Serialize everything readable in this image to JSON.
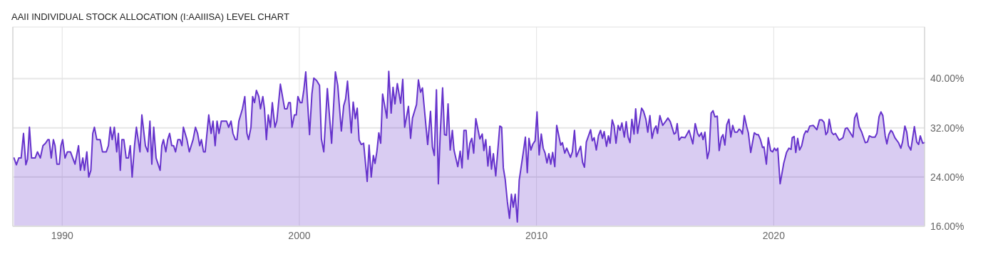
{
  "chart_data": {
    "type": "area",
    "title": "AAII INDIVIDUAL STOCK ALLOCATION (I:AAIIISA) LEVEL CHART",
    "xlim": [
      1987.92,
      2026.36
    ],
    "xticks": [
      1990,
      2000,
      2010,
      2020
    ],
    "ylim": [
      16,
      48.4
    ],
    "yticks": [
      {
        "value": 16,
        "label": "16.00%"
      },
      {
        "value": 24,
        "label": "24.00%"
      },
      {
        "value": 32,
        "label": "32.00%"
      },
      {
        "value": 40,
        "label": "40.00%"
      }
    ],
    "grid": true,
    "series": [
      {
        "color": "#6633cc",
        "x": [
          1987.97,
          1988.07,
          1988.17,
          1988.27,
          1988.37,
          1988.47,
          1988.54,
          1988.62,
          1988.71,
          1988.86,
          1988.96,
          1989.08,
          1989.19,
          1989.3,
          1989.4,
          1989.45,
          1989.54,
          1989.63,
          1989.7,
          1989.78,
          1989.88,
          1989.95,
          1990.02,
          1990.12,
          1990.22,
          1990.35,
          1990.54,
          1990.69,
          1990.77,
          1990.87,
          1990.94,
          1991.04,
          1991.12,
          1991.21,
          1991.29,
          1991.36,
          1991.46,
          1991.6,
          1991.7,
          1991.86,
          1991.95,
          1992.03,
          1992.11,
          1992.2,
          1992.3,
          1992.37,
          1992.45,
          1992.52,
          1992.6,
          1992.7,
          1992.79,
          1992.87,
          1992.95,
          1993.05,
          1993.13,
          1993.28,
          1993.36,
          1993.51,
          1993.61,
          1993.7,
          1993.78,
          1993.86,
          1993.96,
          1994.13,
          1994.2,
          1994.27,
          1994.37,
          1994.45,
          1994.53,
          1994.62,
          1994.7,
          1994.78,
          1994.88,
          1994.97,
          1995.05,
          1995.11,
          1995.26,
          1995.36,
          1995.52,
          1995.62,
          1995.71,
          1995.8,
          1995.87,
          1995.96,
          1996.03,
          1996.18,
          1996.28,
          1996.36,
          1996.45,
          1996.53,
          1996.61,
          1996.71,
          1996.93,
          1997.02,
          1997.12,
          1997.2,
          1997.3,
          1997.37,
          1997.45,
          1997.6,
          1997.7,
          1997.79,
          1997.86,
          1997.96,
          1998.03,
          1998.11,
          1998.19,
          1998.29,
          1998.36,
          1998.46,
          1998.53,
          1998.61,
          1998.69,
          1998.78,
          1998.86,
          1998.97,
          1999.05,
          1999.2,
          1999.38,
          1999.48,
          1999.55,
          1999.62,
          1999.69,
          1999.79,
          1999.87,
          1999.94,
          2000.04,
          2000.11,
          2000.19,
          2000.27,
          2000.43,
          2000.53,
          2000.61,
          2000.73,
          2000.85,
          2000.93,
          2001.03,
          2001.18,
          2001.36,
          2001.52,
          2001.62,
          2001.77,
          2001.87,
          2001.95,
          2002.03,
          2002.19,
          2002.27,
          2002.36,
          2002.44,
          2002.52,
          2002.61,
          2002.71,
          2002.86,
          2002.94,
          2003.03,
          2003.12,
          2003.19,
          2003.27,
          2003.35,
          2003.43,
          2003.51,
          2003.69,
          2003.77,
          2003.87,
          2003.95,
          2004.03,
          2004.13,
          2004.27,
          2004.36,
          2004.44,
          2004.6,
          2004.69,
          2004.77,
          2004.94,
          2005.02,
          2005.11,
          2005.19,
          2005.41,
          2005.53,
          2005.61,
          2005.69,
          2005.78,
          2005.86,
          2005.94,
          2006.04,
          2006.12,
          2006.2,
          2006.27,
          2006.36,
          2006.45,
          2006.52,
          2006.68,
          2006.78,
          2006.86,
          2006.94,
          2007.03,
          2007.11,
          2007.19,
          2007.27,
          2007.35,
          2007.44,
          2007.61,
          2007.71,
          2007.78,
          2007.86,
          2007.95,
          2008.03,
          2008.1,
          2008.18,
          2008.28,
          2008.45,
          2008.53,
          2008.6,
          2008.68,
          2008.77,
          2008.86,
          2008.94,
          2009.02,
          2009.1,
          2009.19,
          2009.27,
          2009.44,
          2009.53,
          2009.61,
          2009.68,
          2009.76,
          2009.85,
          2009.94,
          2010.02,
          2010.11,
          2010.2,
          2010.28,
          2010.36,
          2010.44,
          2010.52,
          2010.6,
          2010.68,
          2010.77,
          2010.85,
          2011.02,
          2011.09,
          2011.19,
          2011.27,
          2011.43,
          2011.51,
          2011.6,
          2011.68,
          2011.86,
          2011.94,
          2012.02,
          2012.1,
          2012.28,
          2012.35,
          2012.43,
          2012.52,
          2012.61,
          2012.7,
          2012.78,
          2012.85,
          2012.95,
          2013.03,
          2013.1,
          2013.19,
          2013.27,
          2013.35,
          2013.44,
          2013.52,
          2013.6,
          2013.7,
          2013.78,
          2013.86,
          2013.94,
          2014.02,
          2014.11,
          2014.18,
          2014.26,
          2014.43,
          2014.51,
          2014.61,
          2014.69,
          2014.78,
          2014.87,
          2014.96,
          2015.04,
          2015.1,
          2015.2,
          2015.32,
          2015.47,
          2015.54,
          2015.64,
          2015.8,
          2015.87,
          2015.93,
          2016.01,
          2016.11,
          2016.26,
          2016.43,
          2016.59,
          2016.69,
          2016.79,
          2016.86,
          2016.95,
          2017.02,
          2017.1,
          2017.2,
          2017.28,
          2017.36,
          2017.44,
          2017.52,
          2017.62,
          2017.7,
          2017.79,
          2017.86,
          2017.94,
          2018.02,
          2018.11,
          2018.19,
          2018.27,
          2018.36,
          2018.46,
          2018.54,
          2018.61,
          2018.68,
          2018.76,
          2018.86,
          2018.93,
          2019.03,
          2019.18,
          2019.28,
          2019.35,
          2019.44,
          2019.53,
          2019.59,
          2019.69,
          2019.77,
          2019.87,
          2019.95,
          2020.03,
          2020.1,
          2020.17,
          2020.27,
          2020.42,
          2020.54,
          2020.64,
          2020.73,
          2020.78,
          2020.86,
          2020.93,
          2021.01,
          2021.09,
          2021.18,
          2021.28,
          2021.36,
          2021.42,
          2021.52,
          2021.67,
          2021.82,
          2021.93,
          2022.03,
          2022.12,
          2022.2,
          2022.27,
          2022.34,
          2022.44,
          2022.52,
          2022.6,
          2022.76,
          2022.92,
          2023.02,
          2023.1,
          2023.34,
          2023.41,
          2023.5,
          2023.6,
          2023.71,
          2023.86,
          2023.95,
          2024.03,
          2024.13,
          2024.27,
          2024.35,
          2024.44,
          2024.52,
          2024.6,
          2024.7,
          2024.77,
          2024.85,
          2024.94,
          2025.01,
          2025.11,
          2025.26,
          2025.36,
          2025.43,
          2025.53,
          2025.61,
          2025.68,
          2025.78,
          2025.93,
          2026.03,
          2026.11,
          2026.18,
          2026.28,
          2026.35
        ],
        "values": [
          27.1,
          26.0,
          27.1,
          27.1,
          31.1,
          26.0,
          26.9,
          32.1,
          27.1,
          27.1,
          28.1,
          27.1,
          29.1,
          29.5,
          30.1,
          30.1,
          27.1,
          30.1,
          29.1,
          26.1,
          26.1,
          29.1,
          30.1,
          27.1,
          28.1,
          28.1,
          26.1,
          29.1,
          25.1,
          27.1,
          25.1,
          28.1,
          24.0,
          25.1,
          31.1,
          32.1,
          30.1,
          30.1,
          28.1,
          28.1,
          29.1,
          32.1,
          30.1,
          32.1,
          28.1,
          31.1,
          25.1,
          30.1,
          30.1,
          27.1,
          27.1,
          29.1,
          24.0,
          29.1,
          32.1,
          28.1,
          34.1,
          29.1,
          28.1,
          33.1,
          26.1,
          32.1,
          27.1,
          25.1,
          29.1,
          30.1,
          28.1,
          30.1,
          31.1,
          29.1,
          29.1,
          28.1,
          30.1,
          30.1,
          29.1,
          32.1,
          30.1,
          28.1,
          30.1,
          32.1,
          31.1,
          29.1,
          30.1,
          28.1,
          28.1,
          34.1,
          31.1,
          33.1,
          29.1,
          33.1,
          31.1,
          33.1,
          33.1,
          32.1,
          33.1,
          31.1,
          30.1,
          30.1,
          33.1,
          35.1,
          37.1,
          31.1,
          30.1,
          32.1,
          37.1,
          36.1,
          38.1,
          37.1,
          35.1,
          37.1,
          35.1,
          30.1,
          34.1,
          32.1,
          36.1,
          32.1,
          33.1,
          39.1,
          35.1,
          35.1,
          36.1,
          36.1,
          32.1,
          34.1,
          34.1,
          37.1,
          36.1,
          36.1,
          38.2,
          41.1,
          30.9,
          37.5,
          40.1,
          39.7,
          38.9,
          30.2,
          28.1,
          38.4,
          29.5,
          41.1,
          38.9,
          31.5,
          35.6,
          36.7,
          39.6,
          31.2,
          36.2,
          33.5,
          35.2,
          30.0,
          29.3,
          29.5,
          23.3,
          29.2,
          24.0,
          27.5,
          26.2,
          28.2,
          31.2,
          29.5,
          37.5,
          33.6,
          41.2,
          34.4,
          38.6,
          35.9,
          39.2,
          36.0,
          39.9,
          32.1,
          35.5,
          30.3,
          33.6,
          35.8,
          39.8,
          37.8,
          38.5,
          29.3,
          34.7,
          28.9,
          27.5,
          38.2,
          22.9,
          31.1,
          38.5,
          30.9,
          30.8,
          35.9,
          28.4,
          31.6,
          28.4,
          25.7,
          28.2,
          25.5,
          31.6,
          31.6,
          26.9,
          29.5,
          30.3,
          27.9,
          33.5,
          30.2,
          31.0,
          28.3,
          30.1,
          25.8,
          29.0,
          25.3,
          27.8,
          24.2,
          32.3,
          32.1,
          25.5,
          23.6,
          20.0,
          17.3,
          21.2,
          19.1,
          21.2,
          16.7,
          23.5,
          28.0,
          30.5,
          24.7,
          30.3,
          28.4,
          29.4,
          29.9,
          34.6,
          27.6,
          31.0,
          28.7,
          27.9,
          26.3,
          27.8,
          26.1,
          28.0,
          25.7,
          32.4,
          29.2,
          29.6,
          27.9,
          28.7,
          27.2,
          28.1,
          31.6,
          27.3,
          29.0,
          26.4,
          25.6,
          29.7,
          31.7,
          29.9,
          30.4,
          28.4,
          30.7,
          31.6,
          30.3,
          31.4,
          29.0,
          30.7,
          29.5,
          33.3,
          32.3,
          29.5,
          32.4,
          31.6,
          32.8,
          30.5,
          33.0,
          30.5,
          29.6,
          33.4,
          31.0,
          35.1,
          31.1,
          35.2,
          34.7,
          33.4,
          31.3,
          34.0,
          30.3,
          31.8,
          32.3,
          31.1,
          34.0,
          32.4,
          33.2,
          33.6,
          33.0,
          31.0,
          31.2,
          32.7,
          30.0,
          30.5,
          30.4,
          31.6,
          29.4,
          32.7,
          31.1,
          30.6,
          31.2,
          30.1,
          31.3,
          27.0,
          28.3,
          34.4,
          34.8,
          33.8,
          33.9,
          28.3,
          30.4,
          30.9,
          29.2,
          32.5,
          33.4,
          30.5,
          32.4,
          31.3,
          31.3,
          31.8,
          31.6,
          31.0,
          34.0,
          32.2,
          31.2,
          28.0,
          31.2,
          30.9,
          30.9,
          30.1,
          28.8,
          28.9,
          26.1,
          30.4,
          28.3,
          28.1,
          28.7,
          28.3,
          28.7,
          22.9,
          26.2,
          28.0,
          28.7,
          28.5,
          30.4,
          30.6,
          28.0,
          30.3,
          28.4,
          29.1,
          30.9,
          31.5,
          31.3,
          32.3,
          32.4,
          31.7,
          33.3,
          33.3,
          32.9,
          30.9,
          31.3,
          33.4,
          31.3,
          30.9,
          31.1,
          30.0,
          30.4,
          31.9,
          32.0,
          30.5,
          33.6,
          34.4,
          32.2,
          31.3,
          29.6,
          29.7,
          30.7,
          30.5,
          30.5,
          31.1,
          33.8,
          34.6,
          34.0,
          30.7,
          29.4,
          30.9,
          31.6,
          31.3,
          30.4,
          29.6,
          28.7,
          29.7,
          32.3,
          31.3,
          29.1,
          28.4,
          32.2,
          29.7,
          29.3,
          30.7,
          29.5,
          29.6
        ]
      }
    ]
  }
}
